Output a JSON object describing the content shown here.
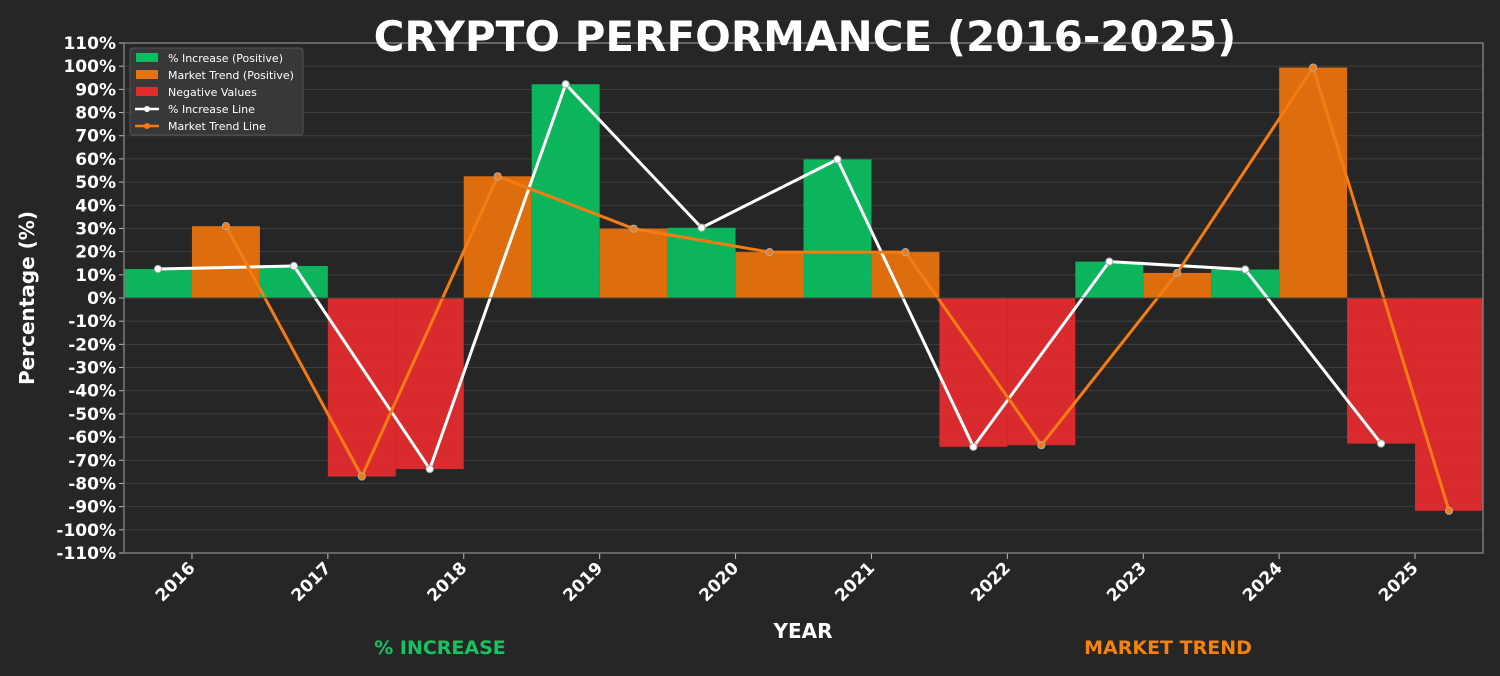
{
  "chart_data": {
    "type": "bar",
    "title": "CRYPTO PERFORMANCE (2016-2025)",
    "xlabel": "YEAR",
    "ylabel": "Percentage (%)",
    "footer_left": "% INCREASE",
    "footer_right": "MARKET TREND",
    "ylim": [
      -110,
      110
    ],
    "yticks": [
      -110,
      -100,
      -90,
      -80,
      -70,
      -60,
      -50,
      -40,
      -30,
      -20,
      -10,
      0,
      10,
      20,
      30,
      40,
      50,
      60,
      70,
      80,
      90,
      100,
      110
    ],
    "ytick_suffix": "%",
    "categories": [
      "2016",
      "2017",
      "2018",
      "2019",
      "2020",
      "2021",
      "2022",
      "2023",
      "2024",
      "2025"
    ],
    "series": [
      {
        "name": "% Increase",
        "values": [
          12.5,
          13.8,
          -73.8,
          92.2,
          30.3,
          59.8,
          -64.2,
          15.7,
          12.3,
          -62.8
        ]
      },
      {
        "name": "Market Trend",
        "values": [
          31.0,
          -77.0,
          52.5,
          29.9,
          19.8,
          19.8,
          -63.5,
          10.8,
          99.4,
          -91.8
        ]
      }
    ],
    "legend": {
      "placement": "top-left",
      "entries": [
        "% Increase (Positive)",
        "Market Trend (Positive)",
        "Negative Values",
        "% Increase Line",
        "Market Trend Line"
      ]
    },
    "grid": true,
    "colors": {
      "increase": "#0bbd5e",
      "trend": "#e8720c",
      "negative": "#e32b2e",
      "increase_line": "#ffffff",
      "trend_line": "#f57c12",
      "background": "#262626",
      "footer_left": "#16c35e",
      "footer_right": "#f5820f"
    }
  }
}
